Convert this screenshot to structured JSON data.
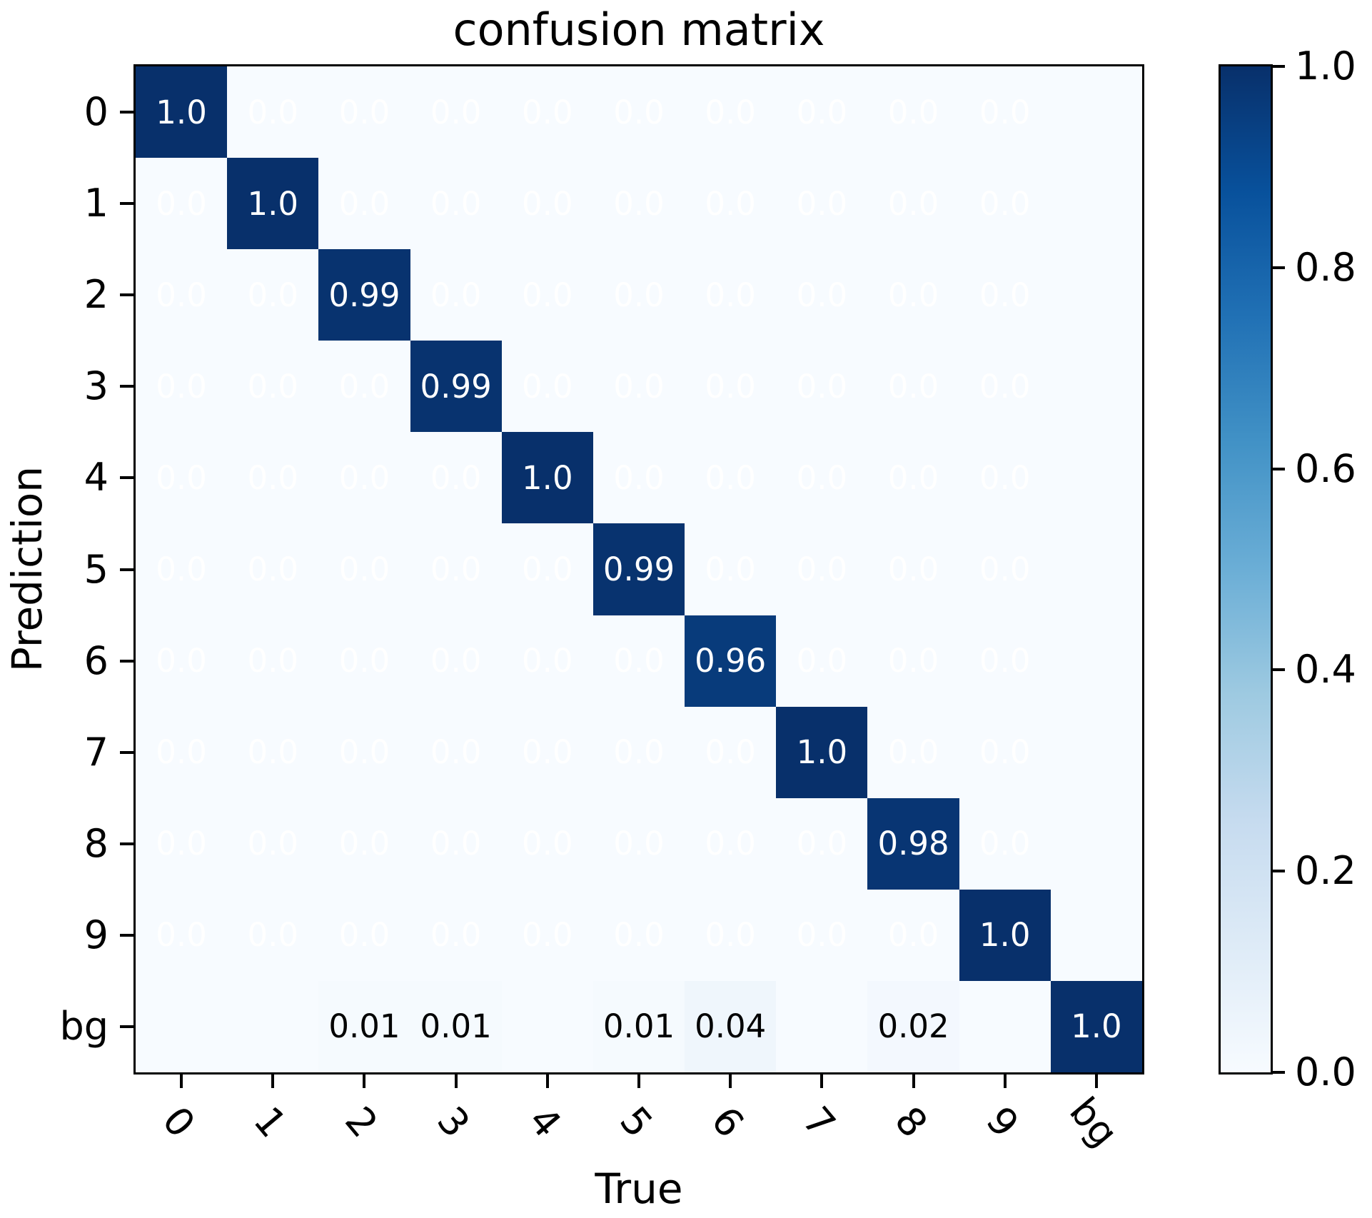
{
  "title": "confusion matrix",
  "colors": {
    "background": "#ffffff",
    "spine": "#000000",
    "text": "#000000",
    "annotation_light": "#ffffff",
    "annotation_dark": "#000000"
  },
  "chart_data": {
    "type": "heatmap",
    "title": "confusion matrix",
    "xlabel": "True",
    "ylabel": "Prediction",
    "x_categories": [
      "0",
      "1",
      "2",
      "3",
      "4",
      "5",
      "6",
      "7",
      "8",
      "9",
      "bg"
    ],
    "y_categories": [
      "0",
      "1",
      "2",
      "3",
      "4",
      "5",
      "6",
      "7",
      "8",
      "9",
      "bg"
    ],
    "values": [
      [
        1.0,
        0,
        0,
        0,
        0,
        0,
        0,
        0,
        0,
        0,
        0
      ],
      [
        0,
        1.0,
        0,
        0,
        0,
        0,
        0,
        0,
        0,
        0,
        0
      ],
      [
        0,
        0,
        0.99,
        0,
        0,
        0,
        0,
        0,
        0,
        0,
        0
      ],
      [
        0,
        0,
        0,
        0.99,
        0,
        0,
        0,
        0,
        0,
        0,
        0
      ],
      [
        0,
        0,
        0,
        0,
        1.0,
        0,
        0,
        0,
        0,
        0,
        0
      ],
      [
        0,
        0,
        0,
        0,
        0,
        0.99,
        0,
        0,
        0,
        0,
        0
      ],
      [
        0,
        0,
        0,
        0,
        0,
        0,
        0.96,
        0,
        0,
        0,
        0
      ],
      [
        0,
        0,
        0,
        0,
        0,
        0,
        0,
        1.0,
        0,
        0,
        0
      ],
      [
        0,
        0,
        0,
        0,
        0,
        0,
        0,
        0,
        0.98,
        0,
        0
      ],
      [
        0,
        0,
        0,
        0,
        0,
        0,
        0,
        0,
        0,
        1.0,
        0
      ],
      [
        0,
        0,
        0.01,
        0.01,
        0,
        0.01,
        0.04,
        0,
        0.02,
        0,
        1.0
      ]
    ],
    "labels": [
      [
        "1.0",
        "0.0",
        "0.0",
        "0.0",
        "0.0",
        "0.0",
        "0.0",
        "0.0",
        "0.0",
        "0.0",
        ""
      ],
      [
        "0.0",
        "1.0",
        "0.0",
        "0.0",
        "0.0",
        "0.0",
        "0.0",
        "0.0",
        "0.0",
        "0.0",
        ""
      ],
      [
        "0.0",
        "0.0",
        "0.99",
        "0.0",
        "0.0",
        "0.0",
        "0.0",
        "0.0",
        "0.0",
        "0.0",
        ""
      ],
      [
        "0.0",
        "0.0",
        "0.0",
        "0.99",
        "0.0",
        "0.0",
        "0.0",
        "0.0",
        "0.0",
        "0.0",
        ""
      ],
      [
        "0.0",
        "0.0",
        "0.0",
        "0.0",
        "1.0",
        "0.0",
        "0.0",
        "0.0",
        "0.0",
        "0.0",
        ""
      ],
      [
        "0.0",
        "0.0",
        "0.0",
        "0.0",
        "0.0",
        "0.99",
        "0.0",
        "0.0",
        "0.0",
        "0.0",
        ""
      ],
      [
        "0.0",
        "0.0",
        "0.0",
        "0.0",
        "0.0",
        "0.0",
        "0.96",
        "0.0",
        "0.0",
        "0.0",
        ""
      ],
      [
        "0.0",
        "0.0",
        "0.0",
        "0.0",
        "0.0",
        "0.0",
        "0.0",
        "1.0",
        "0.0",
        "0.0",
        ""
      ],
      [
        "0.0",
        "0.0",
        "0.0",
        "0.0",
        "0.0",
        "0.0",
        "0.0",
        "0.0",
        "0.98",
        "0.0",
        ""
      ],
      [
        "0.0",
        "0.0",
        "0.0",
        "0.0",
        "0.0",
        "0.0",
        "0.0",
        "0.0",
        "0.0",
        "1.0",
        ""
      ],
      [
        "",
        "",
        "0.01",
        "0.01",
        "",
        "0.01",
        "0.04",
        "",
        "0.02",
        "",
        "1.0"
      ]
    ],
    "colormap": "Blues",
    "color_range": [
      0,
      1
    ],
    "colormap_stops": [
      [
        0.0,
        "#f7fbff"
      ],
      [
        0.125,
        "#deebf7"
      ],
      [
        0.25,
        "#c6dbef"
      ],
      [
        0.375,
        "#9ecae1"
      ],
      [
        0.5,
        "#6baed6"
      ],
      [
        0.625,
        "#4292c6"
      ],
      [
        0.75,
        "#2171b5"
      ],
      [
        0.875,
        "#08519c"
      ],
      [
        1.0,
        "#08306b"
      ]
    ],
    "colorbar_ticks": [
      "1.0",
      "0.8",
      "0.6",
      "0.4",
      "0.2",
      "0.0"
    ],
    "legend_position": "right",
    "grid": false
  }
}
